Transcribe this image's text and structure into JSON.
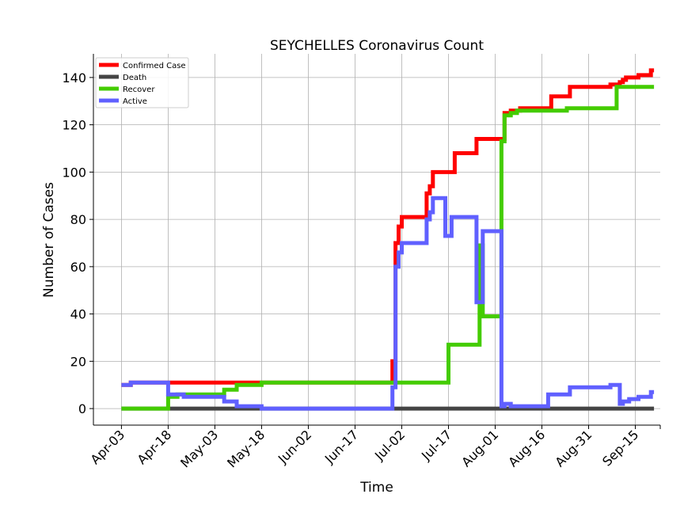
{
  "chart_data": {
    "type": "line",
    "title": "SEYCHELLES Coronavirus Count",
    "xlabel": "Time",
    "ylabel": "Number of Cases",
    "x_start": "2020-03-25",
    "x_end": "2020-09-23",
    "x_ticks": [
      {
        "date": "2020-04-03",
        "label": "Apr-03"
      },
      {
        "date": "2020-04-18",
        "label": "Apr-18"
      },
      {
        "date": "2020-05-03",
        "label": "May-03"
      },
      {
        "date": "2020-05-18",
        "label": "May-18"
      },
      {
        "date": "2020-06-02",
        "label": "Jun-02"
      },
      {
        "date": "2020-06-17",
        "label": "Jun-17"
      },
      {
        "date": "2020-07-02",
        "label": "Jul-02"
      },
      {
        "date": "2020-07-17",
        "label": "Jul-17"
      },
      {
        "date": "2020-08-01",
        "label": "Aug-01"
      },
      {
        "date": "2020-08-16",
        "label": "Aug-16"
      },
      {
        "date": "2020-08-31",
        "label": "Aug-31"
      },
      {
        "date": "2020-09-15",
        "label": "Sep-15"
      }
    ],
    "ylim": [
      -7,
      150
    ],
    "y_ticks": [
      0,
      20,
      40,
      60,
      80,
      100,
      120,
      140
    ],
    "grid": true,
    "legend_position": "top-left",
    "series": [
      {
        "name": "Confirmed Case",
        "color": "#ff0000",
        "points": [
          [
            "2020-04-03",
            10
          ],
          [
            "2020-04-06",
            11
          ],
          [
            "2020-05-18",
            11
          ],
          [
            "2020-06-29",
            11
          ],
          [
            "2020-06-29",
            20
          ],
          [
            "2020-06-30",
            70
          ],
          [
            "2020-07-01",
            77
          ],
          [
            "2020-07-02",
            81
          ],
          [
            "2020-07-10",
            91
          ],
          [
            "2020-07-11",
            94
          ],
          [
            "2020-07-12",
            100
          ],
          [
            "2020-07-19",
            108
          ],
          [
            "2020-07-26",
            114
          ],
          [
            "2020-08-04",
            125
          ],
          [
            "2020-08-06",
            126
          ],
          [
            "2020-08-09",
            127
          ],
          [
            "2020-08-19",
            132
          ],
          [
            "2020-08-25",
            136
          ],
          [
            "2020-09-07",
            137
          ],
          [
            "2020-09-10",
            138
          ],
          [
            "2020-09-11",
            139
          ],
          [
            "2020-09-12",
            140
          ],
          [
            "2020-09-16",
            141
          ],
          [
            "2020-09-20",
            143
          ],
          [
            "2020-09-21",
            143
          ]
        ]
      },
      {
        "name": "Death",
        "color": "#444444",
        "points": [
          [
            "2020-04-03",
            0
          ],
          [
            "2020-09-21",
            0
          ]
        ]
      },
      {
        "name": "Recover",
        "color": "#44cc00",
        "points": [
          [
            "2020-04-03",
            0
          ],
          [
            "2020-04-18",
            0
          ],
          [
            "2020-04-18",
            5
          ],
          [
            "2020-04-21",
            6
          ],
          [
            "2020-05-06",
            8
          ],
          [
            "2020-05-10",
            10
          ],
          [
            "2020-05-18",
            11
          ],
          [
            "2020-07-12",
            11
          ],
          [
            "2020-07-17",
            27
          ],
          [
            "2020-07-27",
            69
          ],
          [
            "2020-07-28",
            39
          ],
          [
            "2020-08-03",
            39
          ],
          [
            "2020-08-03",
            113
          ],
          [
            "2020-08-04",
            124
          ],
          [
            "2020-08-06",
            125
          ],
          [
            "2020-08-08",
            126
          ],
          [
            "2020-08-24",
            127
          ],
          [
            "2020-09-09",
            136
          ],
          [
            "2020-09-21",
            136
          ]
        ]
      },
      {
        "name": "Active",
        "color": "#6060ff",
        "points": [
          [
            "2020-04-03",
            10
          ],
          [
            "2020-04-06",
            11
          ],
          [
            "2020-04-18",
            6
          ],
          [
            "2020-04-23",
            5
          ],
          [
            "2020-05-06",
            3
          ],
          [
            "2020-05-10",
            1
          ],
          [
            "2020-05-18",
            0
          ],
          [
            "2020-06-29",
            0
          ],
          [
            "2020-06-29",
            9
          ],
          [
            "2020-06-30",
            60
          ],
          [
            "2020-07-01",
            66
          ],
          [
            "2020-07-02",
            70
          ],
          [
            "2020-07-10",
            80
          ],
          [
            "2020-07-11",
            83
          ],
          [
            "2020-07-12",
            89
          ],
          [
            "2020-07-16",
            73
          ],
          [
            "2020-07-18",
            81
          ],
          [
            "2020-07-26",
            45
          ],
          [
            "2020-07-28",
            75
          ],
          [
            "2020-08-03",
            75
          ],
          [
            "2020-08-03",
            1
          ],
          [
            "2020-08-04",
            2
          ],
          [
            "2020-08-06",
            1
          ],
          [
            "2020-08-18",
            1
          ],
          [
            "2020-08-18",
            6
          ],
          [
            "2020-08-25",
            9
          ],
          [
            "2020-09-07",
            10
          ],
          [
            "2020-09-10",
            2
          ],
          [
            "2020-09-11",
            3
          ],
          [
            "2020-09-13",
            4
          ],
          [
            "2020-09-16",
            5
          ],
          [
            "2020-09-20",
            7
          ],
          [
            "2020-09-21",
            7
          ]
        ]
      }
    ]
  }
}
